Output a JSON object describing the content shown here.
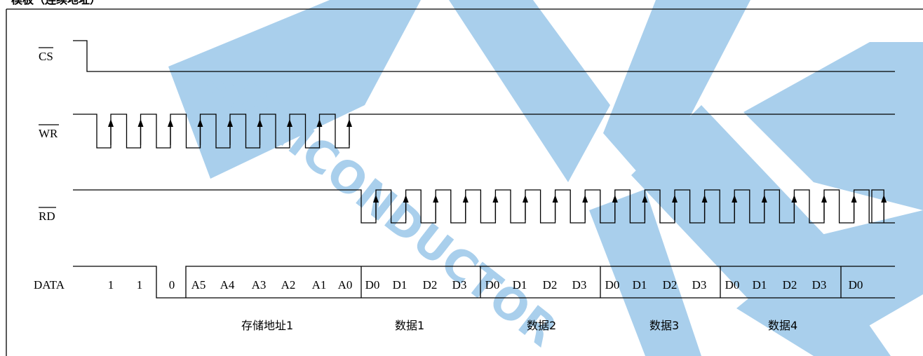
{
  "header_fragment": "模板（连续地址）",
  "signals": {
    "cs": "CS",
    "wr": "WR",
    "rd": "RD",
    "data": "DATA"
  },
  "address_bits": [
    "1",
    "1",
    "0",
    "A5",
    "A4",
    "A3",
    "A2",
    "A1",
    "A0"
  ],
  "data_bits": [
    "D0",
    "D1",
    "D2",
    "D3"
  ],
  "trailing_bit": "D0",
  "captions": {
    "address": "存储地址1",
    "data": [
      "数据1",
      "数据2",
      "数据3",
      "数据4"
    ]
  },
  "watermark_text": "SEMICONDUCTOR",
  "colors": {
    "line": "#000000",
    "watermark": "#a9cfec"
  }
}
